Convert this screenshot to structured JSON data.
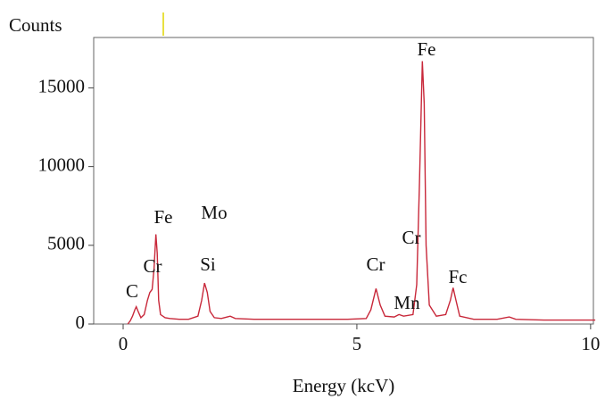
{
  "chart_data": {
    "type": "line",
    "y_label": "Counts",
    "x_label": "Energy (kcV)",
    "x": [
      0.1,
      0.15,
      0.2,
      0.25,
      0.28,
      0.32,
      0.38,
      0.45,
      0.52,
      0.57,
      0.62,
      0.66,
      0.7,
      0.73,
      0.76,
      0.8,
      0.9,
      1.0,
      1.2,
      1.4,
      1.6,
      1.68,
      1.74,
      1.8,
      1.86,
      1.95,
      2.1,
      2.29,
      2.4,
      2.8,
      3.3,
      3.8,
      4.3,
      4.8,
      5.2,
      5.3,
      5.41,
      5.5,
      5.6,
      5.8,
      5.9,
      6.0,
      6.2,
      6.28,
      6.34,
      6.4,
      6.44,
      6.48,
      6.55,
      6.7,
      6.9,
      7.0,
      7.06,
      7.12,
      7.2,
      7.5,
      8.0,
      8.26,
      8.4,
      9.0,
      9.5,
      10.0,
      10.1
    ],
    "series": [
      {
        "color": "#c8283a",
        "values": [
          0,
          200,
          500,
          900,
          1100,
          800,
          400,
          600,
          1500,
          2000,
          2200,
          3500,
          5700,
          4500,
          1500,
          600,
          400,
          350,
          300,
          300,
          500,
          1500,
          2600,
          2000,
          800,
          400,
          350,
          500,
          350,
          300,
          300,
          300,
          300,
          300,
          350,
          900,
          2250,
          1200,
          500,
          450,
          600,
          500,
          600,
          2500,
          9000,
          16700,
          14000,
          5000,
          1200,
          500,
          600,
          1500,
          2300,
          1500,
          500,
          300,
          300,
          450,
          300,
          250,
          250,
          250,
          250
        ]
      }
    ],
    "xlim": [
      -0.63,
      10.06
    ],
    "ylim": [
      0,
      18200
    ],
    "xticks": [
      0,
      5,
      10
    ],
    "yticks": [
      0,
      5000,
      10000,
      15000
    ],
    "annotations": [
      "C",
      "Cr",
      "Fe",
      "Mo",
      "Si",
      "Cr",
      "Mn",
      "Cr",
      "Fe",
      "Fc"
    ]
  }
}
